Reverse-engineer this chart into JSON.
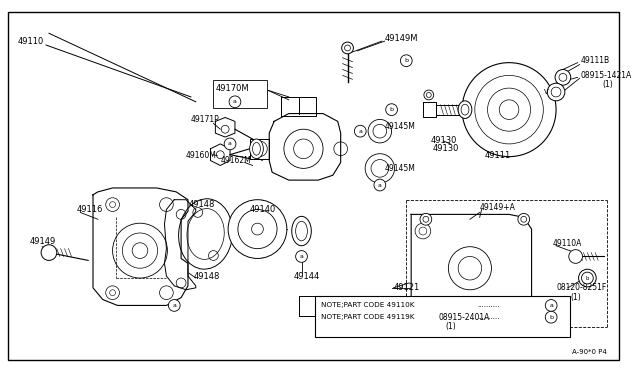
{
  "bg_color": "#ffffff",
  "fig_width": 6.4,
  "fig_height": 3.72,
  "dpi": 100,
  "watermark": "A-90*0 P4",
  "notes": [
    "NOTE;PART CODE 49110K",
    "NOTE;PART CODE 49119K"
  ]
}
